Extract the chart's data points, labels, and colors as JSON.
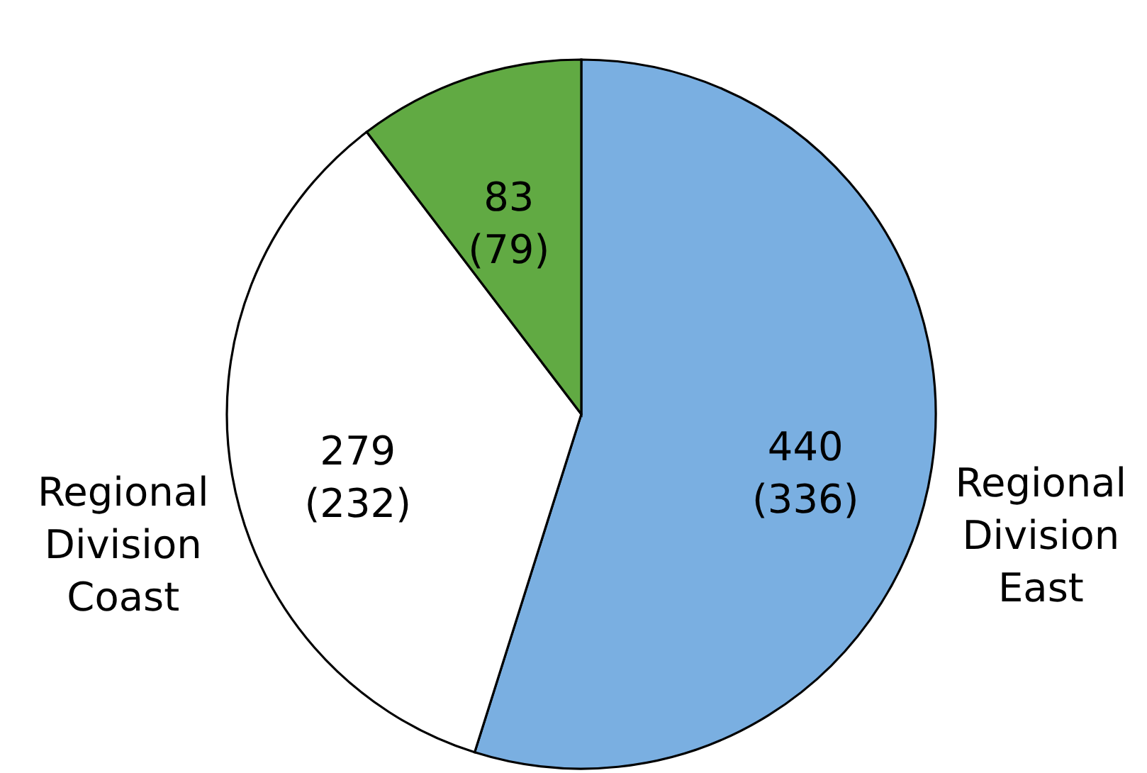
{
  "chart_data": {
    "type": "pie",
    "categories": [
      "Regional Division East",
      "Regional Division Coast",
      null
    ],
    "values": [
      440,
      279,
      83
    ],
    "colors": [
      "#7aafe1",
      "#ffffff",
      "#61aa43"
    ],
    "value_labels": [
      "440 (336)",
      "279 (232)",
      "83 (79)"
    ]
  }
}
